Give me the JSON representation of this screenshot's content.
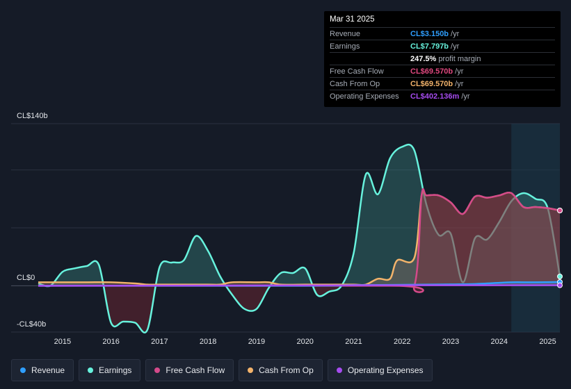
{
  "tooltip": {
    "date": "Mar 31 2025",
    "rows": [
      {
        "label": "Revenue",
        "value": "CL$3.150b",
        "unit": "/yr",
        "color": "#2f9fff"
      },
      {
        "label": "Earnings",
        "value": "CL$7.797b",
        "unit": "/yr",
        "color": "#67f2dd"
      },
      {
        "label": "",
        "value": "247.5%",
        "unit": "profit margin",
        "color": "#ffffff"
      },
      {
        "label": "Free Cash Flow",
        "value": "CL$69.570b",
        "unit": "/yr",
        "color": "#e0487f"
      },
      {
        "label": "Cash From Op",
        "value": "CL$69.570b",
        "unit": "/yr",
        "color": "#f3b36b"
      },
      {
        "label": "Operating Expenses",
        "value": "CL$402.136m",
        "unit": "/yr",
        "color": "#a64cf0"
      }
    ]
  },
  "legend": [
    {
      "label": "Revenue",
      "color": "#2f9fff"
    },
    {
      "label": "Earnings",
      "color": "#67f2dd"
    },
    {
      "label": "Free Cash Flow",
      "color": "#d44a8a"
    },
    {
      "label": "Cash From Op",
      "color": "#f3b36b"
    },
    {
      "label": "Operating Expenses",
      "color": "#a64cf0"
    }
  ],
  "chart_data": {
    "type": "area",
    "y_labels": [
      "CL$140b",
      "CL$0",
      "-CL$40b"
    ],
    "ylim": [
      -40,
      140
    ],
    "xlim": [
      2014.4,
      2025.25
    ],
    "x_ticks": [
      "2015",
      "2016",
      "2017",
      "2018",
      "2019",
      "2020",
      "2021",
      "2022",
      "2023",
      "2024",
      "2025"
    ],
    "x_tick_values": [
      2015,
      2016,
      2017,
      2018,
      2019,
      2020,
      2021,
      2022,
      2023,
      2024,
      2025
    ],
    "grid": true,
    "forecast_start": 2024.25,
    "series": [
      {
        "name": "Earnings",
        "color": "#67f2dd",
        "x": [
          2014.5,
          2014.75,
          2015.0,
          2015.25,
          2015.5,
          2015.75,
          2016.0,
          2016.25,
          2016.5,
          2016.75,
          2017.0,
          2017.25,
          2017.5,
          2017.75,
          2018.0,
          2018.25,
          2018.5,
          2018.75,
          2019.0,
          2019.25,
          2019.5,
          2019.75,
          2020.0,
          2020.25,
          2020.5,
          2020.75,
          2021.0,
          2021.25,
          2021.5,
          2021.75,
          2022.0,
          2022.25,
          2022.5,
          2022.75,
          2023.0,
          2023.25,
          2023.5,
          2023.75,
          2024.0,
          2024.25,
          2024.5,
          2024.75,
          2025.0,
          2025.25
        ],
        "y": [
          2,
          0,
          12,
          15,
          17,
          18,
          -32,
          -31,
          -32,
          -38,
          16,
          20,
          22,
          43,
          30,
          8,
          -8,
          -20,
          -20,
          -2,
          11,
          11,
          15,
          -8,
          -5,
          0,
          28,
          96,
          79,
          110,
          120,
          117,
          70,
          44,
          45,
          3,
          41,
          40,
          55,
          73,
          80,
          75,
          67,
          8
        ]
      },
      {
        "name": "Cash From Op",
        "color": "#f3b36b",
        "x": [
          2014.5,
          2015.0,
          2015.5,
          2016.0,
          2016.5,
          2016.75,
          2017.0,
          2017.5,
          2018.0,
          2018.25,
          2018.5,
          2019.0,
          2019.25,
          2019.5,
          2020.0,
          2020.25,
          2020.5,
          2021.0,
          2021.25,
          2021.5,
          2021.75,
          2021.9,
          2022.25,
          2022.4,
          2022.5,
          2022.75,
          2023.0,
          2023.25,
          2023.5,
          2023.75,
          2024.0,
          2024.25,
          2024.5,
          2024.75,
          2025.0,
          2025.25
        ],
        "y": [
          3,
          3,
          3,
          3,
          2,
          1,
          1,
          1,
          1,
          1,
          3,
          3,
          3,
          1,
          1,
          1,
          1,
          1,
          1,
          6,
          6,
          22,
          24,
          78,
          78,
          78,
          72,
          62,
          77,
          76,
          78,
          80,
          68,
          68,
          67,
          65
        ]
      },
      {
        "name": "Free Cash Flow",
        "color": "#d44a8a",
        "x": [
          2014.5,
          2021.75,
          2022.25,
          2022.4,
          2022.5,
          2022.75,
          2023.0,
          2023.25,
          2023.5,
          2023.75,
          2024.0,
          2024.25,
          2024.5,
          2024.75,
          2025.0,
          2025.25
        ],
        "y": [
          0,
          0,
          0,
          78,
          78,
          78,
          72,
          62,
          77,
          76,
          78,
          80,
          68,
          68,
          67,
          65
        ]
      },
      {
        "name": "Revenue",
        "color": "#2f9fff",
        "x": [
          2014.5,
          2020.0,
          2021.0,
          2022.0,
          2023.0,
          2023.5,
          2024.0,
          2024.25,
          2024.75,
          2025.25
        ],
        "y": [
          0,
          0,
          0.5,
          0.8,
          1.2,
          1.5,
          2.5,
          3,
          3,
          3.2
        ]
      },
      {
        "name": "Operating Expenses",
        "color": "#a64cf0",
        "x": [
          2014.5,
          2020.25,
          2021.0,
          2022.0,
          2023.0,
          2024.0,
          2025.25
        ],
        "y": [
          0,
          0.3,
          0.4,
          0.4,
          0.4,
          0.4,
          0.4
        ]
      }
    ]
  }
}
